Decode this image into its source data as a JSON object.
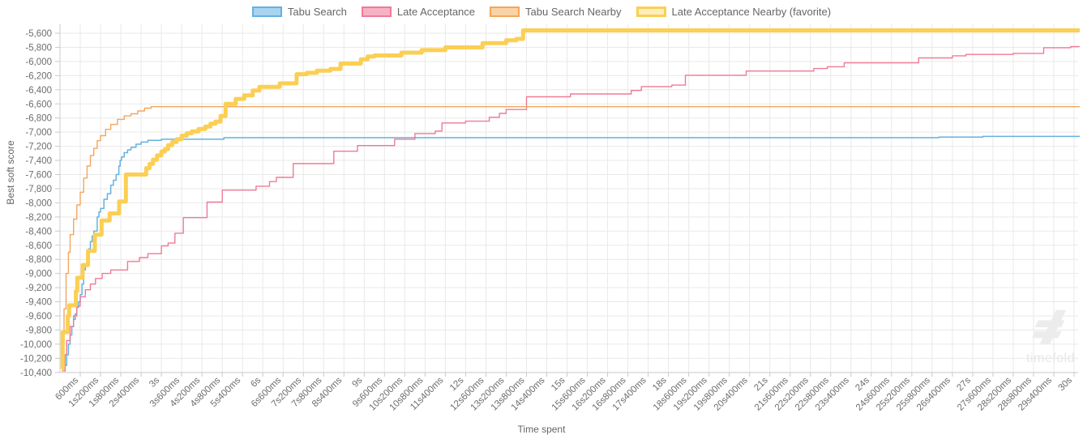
{
  "watermark": {
    "text": "timefold"
  },
  "chart_data": {
    "type": "line",
    "step": true,
    "title": "",
    "xlabel": "Time spent",
    "ylabel": "Best soft score",
    "xlim_seconds": [
      0,
      30
    ],
    "ylim": [
      -10400,
      -5600
    ],
    "grid": true,
    "legend_position": "top",
    "x_tick_interval": "600ms",
    "x_ticks": [
      "600ms",
      "1s200ms",
      "1s800ms",
      "2s400ms",
      "3s",
      "3s600ms",
      "4s200ms",
      "4s800ms",
      "5s400ms",
      "6s",
      "6s600ms",
      "7s200ms",
      "7s800ms",
      "8s400ms",
      "9s",
      "9s600ms",
      "10s200ms",
      "10s800ms",
      "11s400ms",
      "12s",
      "12s600ms",
      "13s200ms",
      "13s800ms",
      "14s400ms",
      "15s",
      "15s600ms",
      "16s200ms",
      "16s800ms",
      "17s400ms",
      "18s",
      "18s600ms",
      "19s200ms",
      "19s800ms",
      "20s400ms",
      "21s",
      "21s600ms",
      "22s200ms",
      "22s800ms",
      "23s400ms",
      "24s",
      "24s600ms",
      "25s200ms",
      "25s800ms",
      "26s400ms",
      "27s",
      "27s600ms",
      "28s200ms",
      "28s800ms",
      "29s400ms",
      "30s"
    ],
    "y_ticks": [
      "-5,600",
      "-5,800",
      "-6,000",
      "-6,200",
      "-6,400",
      "-6,600",
      "-6,800",
      "-7,000",
      "-7,200",
      "-7,400",
      "-7,600",
      "-7,800",
      "-8,000",
      "-8,200",
      "-8,400",
      "-8,600",
      "-8,800",
      "-9,000",
      "-9,200",
      "-9,400",
      "-9,600",
      "-9,800",
      "-10,000",
      "-10,200",
      "-10,400"
    ],
    "series": [
      {
        "name": "Tabu Search",
        "color": "#64b1e1",
        "legend_fill": "#a8d4f0",
        "line_width": 1.5,
        "favorite": false,
        "points_time_s_score": [
          [
            0.15,
            -10300
          ],
          [
            0.2,
            -10150
          ],
          [
            0.25,
            -10000
          ],
          [
            0.3,
            -9870
          ],
          [
            0.35,
            -9750
          ],
          [
            0.4,
            -9650
          ],
          [
            0.45,
            -9570
          ],
          [
            0.5,
            -9480
          ],
          [
            0.55,
            -9400
          ],
          [
            0.6,
            -9300
          ],
          [
            0.65,
            -9150
          ],
          [
            0.7,
            -8950
          ],
          [
            0.75,
            -8870
          ],
          [
            0.8,
            -8750
          ],
          [
            0.85,
            -8650
          ],
          [
            0.9,
            -8550
          ],
          [
            0.95,
            -8470
          ],
          [
            1.0,
            -8400
          ],
          [
            1.1,
            -8200
          ],
          [
            1.15,
            -8130
          ],
          [
            1.2,
            -8080
          ],
          [
            1.3,
            -7950
          ],
          [
            1.4,
            -7870
          ],
          [
            1.5,
            -7750
          ],
          [
            1.58,
            -7680
          ],
          [
            1.66,
            -7600
          ],
          [
            1.74,
            -7480
          ],
          [
            1.78,
            -7400
          ],
          [
            1.82,
            -7350
          ],
          [
            1.9,
            -7290
          ],
          [
            2.0,
            -7250
          ],
          [
            2.1,
            -7215
          ],
          [
            2.25,
            -7170
          ],
          [
            2.4,
            -7140
          ],
          [
            2.6,
            -7115
          ],
          [
            3.0,
            -7100
          ],
          [
            4.85,
            -7078
          ],
          [
            26.0,
            -7070
          ],
          [
            27.3,
            -7060
          ]
        ]
      },
      {
        "name": "Late Acceptance",
        "color": "#ef7a96",
        "legend_fill": "#f8b1c4",
        "line_width": 1.4,
        "favorite": false,
        "points_time_s_score": [
          [
            0.1,
            -10380
          ],
          [
            0.15,
            -10150
          ],
          [
            0.2,
            -9950
          ],
          [
            0.3,
            -9750
          ],
          [
            0.4,
            -9600
          ],
          [
            0.5,
            -9460
          ],
          [
            0.6,
            -9330
          ],
          [
            0.75,
            -9230
          ],
          [
            0.9,
            -9150
          ],
          [
            1.05,
            -9070
          ],
          [
            1.25,
            -9000
          ],
          [
            1.5,
            -8950
          ],
          [
            2.0,
            -8830
          ],
          [
            2.35,
            -8775
          ],
          [
            2.6,
            -8720
          ],
          [
            3.0,
            -8610
          ],
          [
            3.2,
            -8570
          ],
          [
            3.4,
            -8430
          ],
          [
            3.65,
            -8210
          ],
          [
            4.35,
            -7990
          ],
          [
            4.8,
            -7820
          ],
          [
            5.8,
            -7765
          ],
          [
            6.2,
            -7700
          ],
          [
            6.4,
            -7640
          ],
          [
            6.9,
            -7445
          ],
          [
            8.1,
            -7270
          ],
          [
            8.8,
            -7190
          ],
          [
            9.9,
            -7100
          ],
          [
            10.5,
            -7020
          ],
          [
            11.1,
            -6985
          ],
          [
            11.3,
            -6870
          ],
          [
            12.0,
            -6845
          ],
          [
            12.7,
            -6790
          ],
          [
            13.0,
            -6735
          ],
          [
            13.2,
            -6680
          ],
          [
            13.8,
            -6500
          ],
          [
            15.1,
            -6460
          ],
          [
            16.9,
            -6410
          ],
          [
            17.2,
            -6355
          ],
          [
            18.1,
            -6335
          ],
          [
            18.5,
            -6195
          ],
          [
            20.3,
            -6135
          ],
          [
            22.3,
            -6100
          ],
          [
            22.7,
            -6075
          ],
          [
            23.2,
            -6020
          ],
          [
            25.4,
            -5950
          ],
          [
            26.4,
            -5920
          ],
          [
            26.8,
            -5900
          ],
          [
            28.2,
            -5885
          ],
          [
            29.1,
            -5805
          ],
          [
            29.9,
            -5790
          ]
        ]
      },
      {
        "name": "Tabu Search Nearby",
        "color": "#f2a65e",
        "legend_fill": "#f9d3a4",
        "line_width": 1.4,
        "favorite": false,
        "points_time_s_score": [
          [
            0.05,
            -10380
          ],
          [
            0.08,
            -10000
          ],
          [
            0.12,
            -9500
          ],
          [
            0.18,
            -9000
          ],
          [
            0.25,
            -8700
          ],
          [
            0.3,
            -8450
          ],
          [
            0.4,
            -8230
          ],
          [
            0.5,
            -8030
          ],
          [
            0.6,
            -7850
          ],
          [
            0.7,
            -7650
          ],
          [
            0.8,
            -7480
          ],
          [
            0.9,
            -7330
          ],
          [
            1.0,
            -7230
          ],
          [
            1.1,
            -7120
          ],
          [
            1.2,
            -7050
          ],
          [
            1.35,
            -6960
          ],
          [
            1.5,
            -6890
          ],
          [
            1.7,
            -6820
          ],
          [
            1.9,
            -6770
          ],
          [
            2.1,
            -6740
          ],
          [
            2.3,
            -6700
          ],
          [
            2.5,
            -6660
          ],
          [
            2.7,
            -6640
          ]
        ]
      },
      {
        "name": "Late Acceptance Nearby (favorite)",
        "color": "#fbcf54",
        "legend_fill": "#fdeec0",
        "line_width": 5,
        "favorite": true,
        "points_time_s_score": [
          [
            0.05,
            -10350
          ],
          [
            0.08,
            -9830
          ],
          [
            0.23,
            -9600
          ],
          [
            0.27,
            -9450
          ],
          [
            0.47,
            -9250
          ],
          [
            0.51,
            -9060
          ],
          [
            0.67,
            -8880
          ],
          [
            0.83,
            -8680
          ],
          [
            1.03,
            -8450
          ],
          [
            1.23,
            -8250
          ],
          [
            1.47,
            -8150
          ],
          [
            1.75,
            -7980
          ],
          [
            1.95,
            -7600
          ],
          [
            2.55,
            -7510
          ],
          [
            2.65,
            -7450
          ],
          [
            2.75,
            -7390
          ],
          [
            2.87,
            -7330
          ],
          [
            3.0,
            -7275
          ],
          [
            3.1,
            -7240
          ],
          [
            3.2,
            -7185
          ],
          [
            3.32,
            -7140
          ],
          [
            3.45,
            -7100
          ],
          [
            3.6,
            -7050
          ],
          [
            3.75,
            -7015
          ],
          [
            3.9,
            -6990
          ],
          [
            4.1,
            -6955
          ],
          [
            4.3,
            -6920
          ],
          [
            4.45,
            -6880
          ],
          [
            4.6,
            -6850
          ],
          [
            4.75,
            -6770
          ],
          [
            4.9,
            -6600
          ],
          [
            5.2,
            -6530
          ],
          [
            5.45,
            -6480
          ],
          [
            5.7,
            -6410
          ],
          [
            5.9,
            -6360
          ],
          [
            6.5,
            -6310
          ],
          [
            7.0,
            -6180
          ],
          [
            7.3,
            -6160
          ],
          [
            7.6,
            -6130
          ],
          [
            8.0,
            -6105
          ],
          [
            8.3,
            -6030
          ],
          [
            8.9,
            -5970
          ],
          [
            9.1,
            -5930
          ],
          [
            9.3,
            -5915
          ],
          [
            10.1,
            -5875
          ],
          [
            10.7,
            -5840
          ],
          [
            11.4,
            -5800
          ],
          [
            12.5,
            -5740
          ],
          [
            13.2,
            -5700
          ],
          [
            13.5,
            -5680
          ],
          [
            13.7,
            -5560
          ]
        ]
      }
    ]
  }
}
